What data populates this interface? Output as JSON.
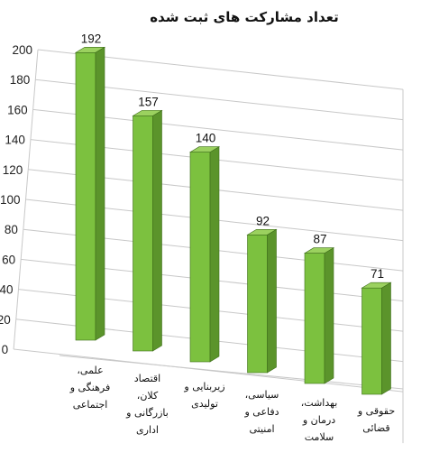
{
  "chart_data": {
    "type": "bar",
    "title": "تعداد مشارکت های ثبت شده",
    "categories": [
      [
        "علمی،",
        "فرهنگی و",
        "اجتماعی"
      ],
      [
        "اقتصاد",
        "کلان،",
        "بازرگانی و",
        "اداری"
      ],
      [
        "زیربنایی و",
        "تولیدی"
      ],
      [
        "سیاسی،",
        "دفاعی و",
        "امنیتی"
      ],
      [
        "بهداشت،",
        "درمان و",
        "سلامت"
      ],
      [
        "حقوقی و",
        "قضائی"
      ]
    ],
    "values": [
      192,
      157,
      140,
      92,
      87,
      71
    ],
    "ylim": [
      0,
      200
    ],
    "yticks": [
      0,
      20,
      40,
      60,
      80,
      100,
      120,
      140,
      160,
      180,
      200
    ],
    "grid": true,
    "legend": "none",
    "colors": {
      "bar_front": "#7cc13f",
      "bar_side": "#5b942b",
      "bar_top": "#9bd15f",
      "bar_edge": "#3e6e1a",
      "grid": "#c8c8c8"
    }
  }
}
